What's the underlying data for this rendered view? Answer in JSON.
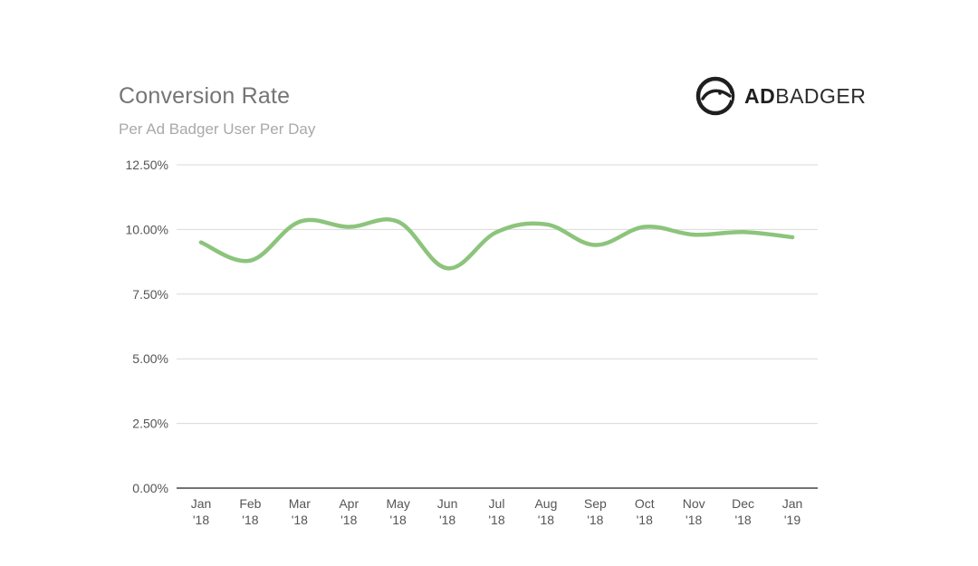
{
  "header": {
    "title": "Conversion Rate",
    "subtitle": "Per Ad Badger User Per Day"
  },
  "logo": {
    "text_bold": "AD",
    "text_light": "BADGER",
    "icon": "badger-head-icon"
  },
  "colors": {
    "line": "#8cc47c",
    "grid": "#d9d9d9",
    "axis": "#444444"
  },
  "chart_data": {
    "type": "line",
    "title": "Conversion Rate",
    "subtitle": "Per Ad Badger User Per Day",
    "xlabel": "",
    "ylabel": "",
    "categories": [
      [
        "Jan",
        "'18"
      ],
      [
        "Feb",
        "'18"
      ],
      [
        "Mar",
        "'18"
      ],
      [
        "Apr",
        "'18"
      ],
      [
        "May",
        "'18"
      ],
      [
        "Jun",
        "'18"
      ],
      [
        "Jul",
        "'18"
      ],
      [
        "Aug",
        "'18"
      ],
      [
        "Sep",
        "'18"
      ],
      [
        "Oct",
        "'18"
      ],
      [
        "Nov",
        "'18"
      ],
      [
        "Dec",
        "'18"
      ],
      [
        "Jan",
        "'19"
      ]
    ],
    "values": [
      9.5,
      8.8,
      10.3,
      10.1,
      10.3,
      8.5,
      9.9,
      10.2,
      9.4,
      10.1,
      9.8,
      9.9,
      9.7
    ],
    "ylim": [
      0,
      12.5
    ],
    "yticks": [
      "0.00%",
      "2.50%",
      "5.00%",
      "7.50%",
      "10.00%",
      "12.50%"
    ],
    "ytick_values": [
      0,
      2.5,
      5,
      7.5,
      10,
      12.5
    ],
    "grid": true,
    "legend": "none"
  }
}
